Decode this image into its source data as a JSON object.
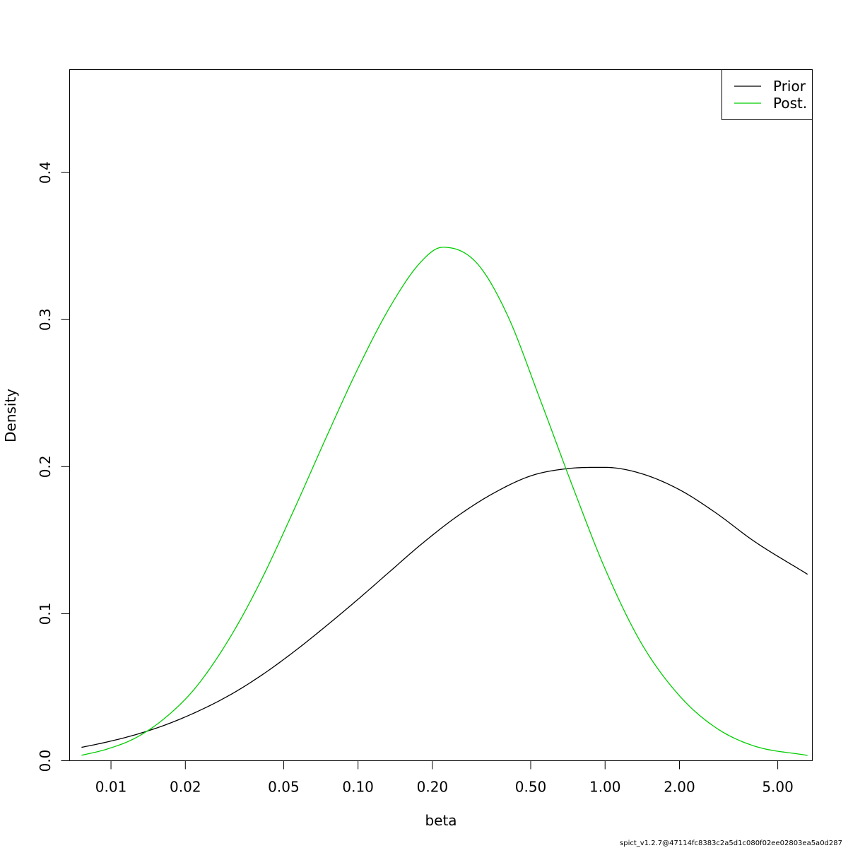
{
  "chart_data": {
    "type": "line",
    "xlabel": "beta",
    "ylabel": "Density",
    "x_scale": "log",
    "xlim": [
      0.0068,
      6.9
    ],
    "ylim": [
      0,
      0.47
    ],
    "x_ticks": [
      {
        "value": 0.01,
        "label": "0.01"
      },
      {
        "value": 0.02,
        "label": "0.02"
      },
      {
        "value": 0.05,
        "label": "0.05"
      },
      {
        "value": 0.1,
        "label": "0.10"
      },
      {
        "value": 0.2,
        "label": "0.20"
      },
      {
        "value": 0.5,
        "label": "0.50"
      },
      {
        "value": 1.0,
        "label": "1.00"
      },
      {
        "value": 2.0,
        "label": "2.00"
      },
      {
        "value": 5.0,
        "label": "5.00"
      }
    ],
    "y_ticks": [
      {
        "value": 0.0,
        "label": "0.0"
      },
      {
        "value": 0.1,
        "label": "0.1"
      },
      {
        "value": 0.2,
        "label": "0.2"
      },
      {
        "value": 0.3,
        "label": "0.3"
      },
      {
        "value": 0.4,
        "label": "0.4"
      }
    ],
    "grid": false,
    "legend_position": "top-right",
    "series": [
      {
        "name": "Prior",
        "color": "#000000",
        "x": [
          0.0076,
          0.0095,
          0.0125,
          0.0165,
          0.022,
          0.03,
          0.04,
          0.055,
          0.075,
          0.1,
          0.135,
          0.18,
          0.25,
          0.35,
          0.5,
          0.7,
          1.0,
          1.4,
          2.0,
          2.8,
          4.0,
          6.6
        ],
        "y": [
          0.0091,
          0.0125,
          0.0176,
          0.0242,
          0.0329,
          0.0443,
          0.0573,
          0.0741,
          0.0922,
          0.1098,
          0.1289,
          0.1471,
          0.1658,
          0.1815,
          0.1937,
          0.1986,
          0.1995,
          0.1953,
          0.1843,
          0.1687,
          0.1494,
          0.1268
        ]
      },
      {
        "name": "Post.",
        "color": "#00cd00",
        "x": [
          0.0076,
          0.0095,
          0.0125,
          0.0165,
          0.022,
          0.03,
          0.04,
          0.055,
          0.075,
          0.1,
          0.135,
          0.18,
          0.22,
          0.3,
          0.4,
          0.55,
          0.75,
          1.0,
          1.4,
          2.0,
          2.8,
          4.0,
          6.6
        ],
        "y": [
          0.0037,
          0.0076,
          0.0153,
          0.0289,
          0.0497,
          0.0825,
          0.1208,
          0.1705,
          0.2213,
          0.2669,
          0.3089,
          0.3394,
          0.3492,
          0.3391,
          0.304,
          0.2442,
          0.1837,
          0.1305,
          0.0801,
          0.0442,
          0.0226,
          0.0101,
          0.0036
        ]
      }
    ]
  },
  "footer": {
    "version_label": "spict_v1.2.7@47114fc8383c2a5d1c080f02ee02803ea5a0d287"
  }
}
